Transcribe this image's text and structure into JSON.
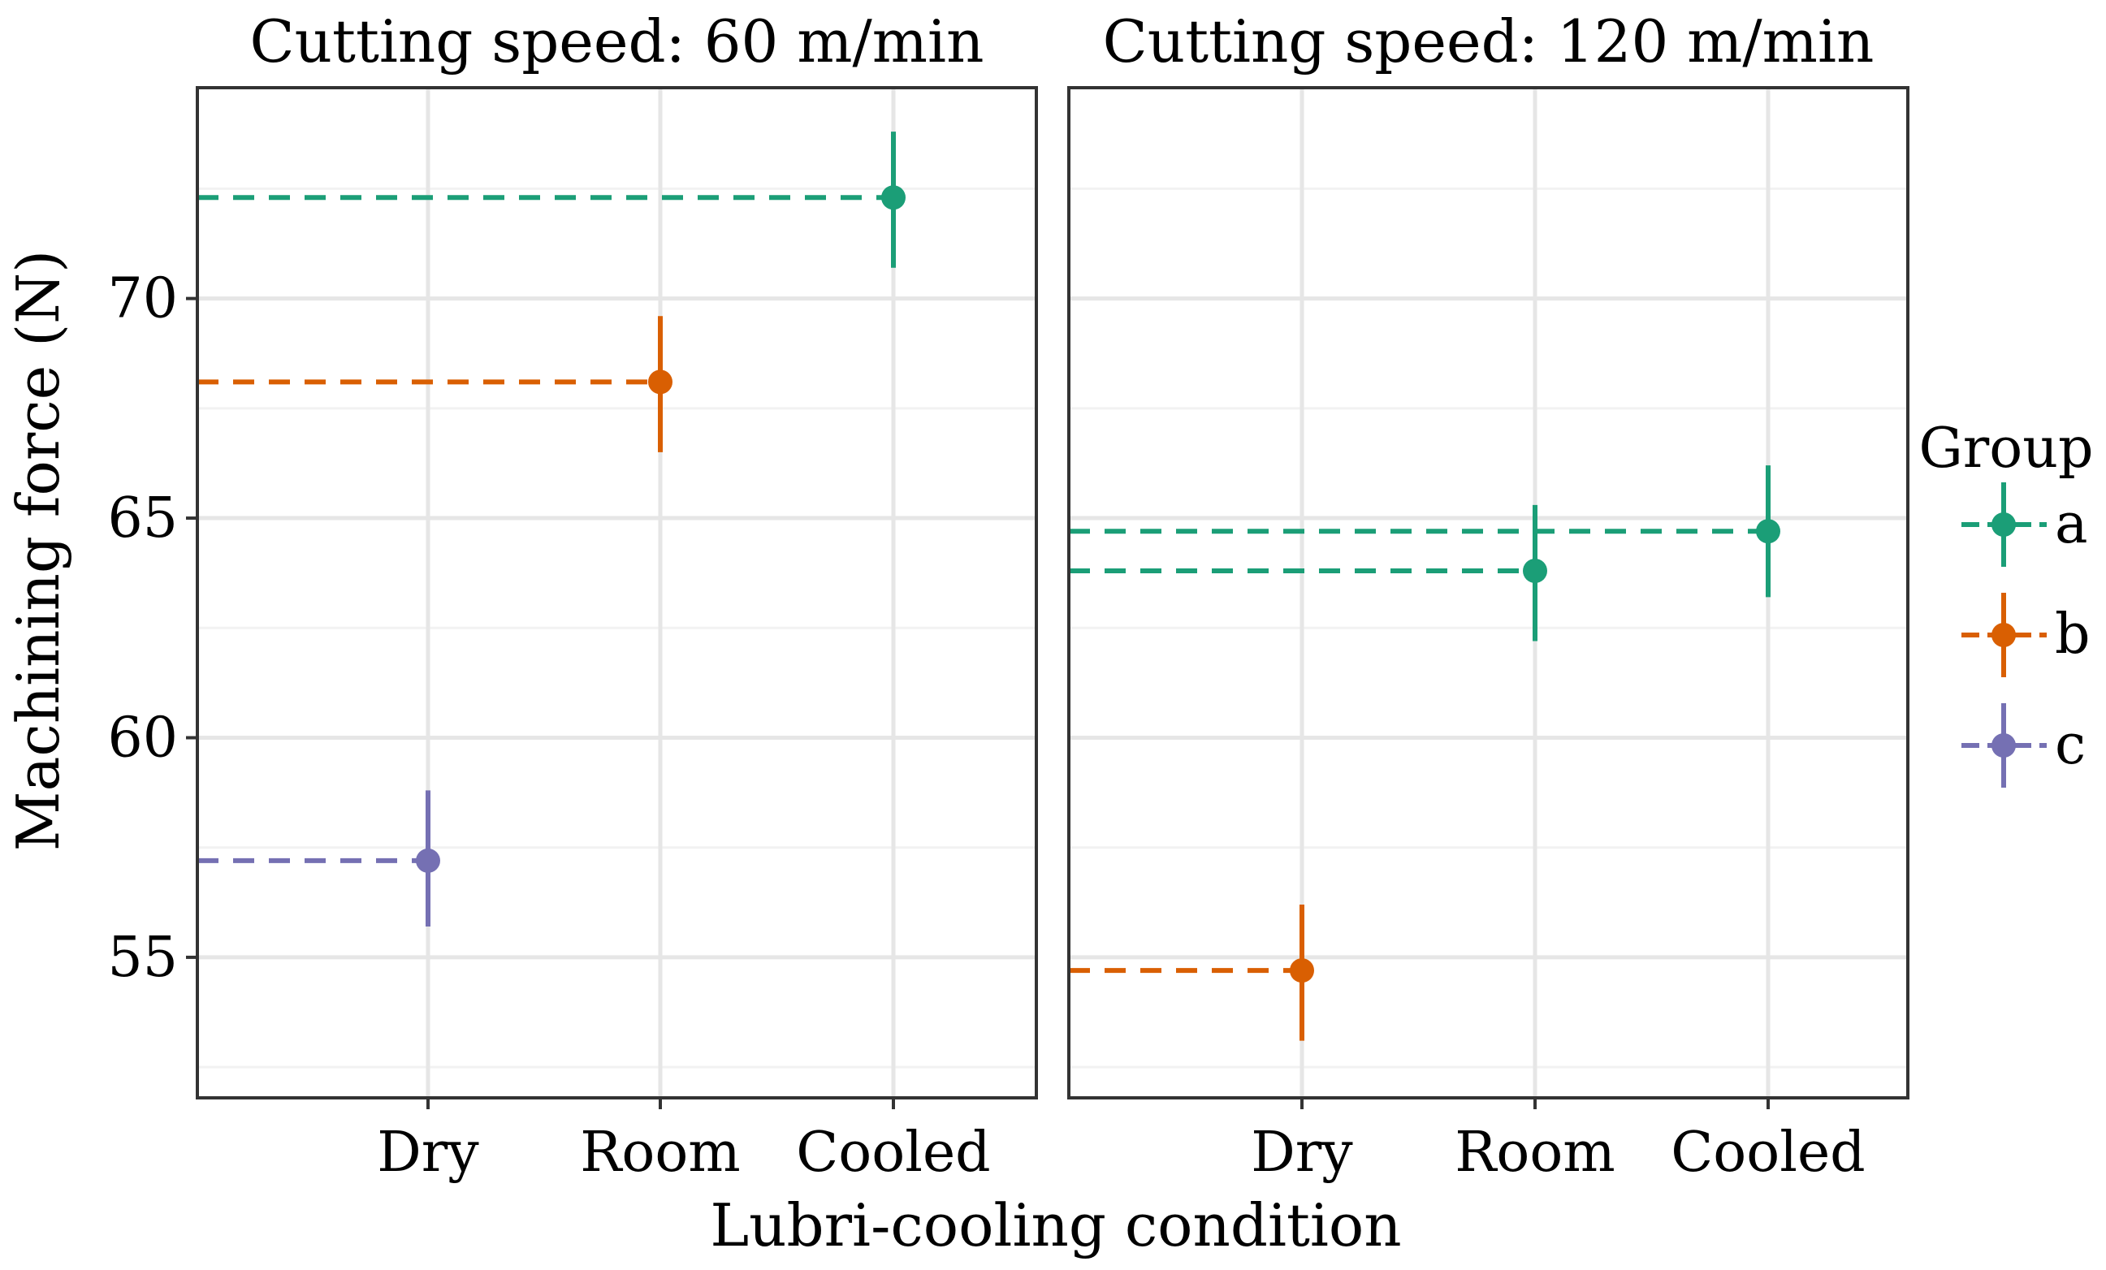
{
  "chart_data": {
    "type": "scatter",
    "ylabel": "Machining force (N)",
    "xlabel": "Lubri-cooling condition",
    "categories": [
      "Dry",
      "Room",
      "Cooled"
    ],
    "ylim": [
      51.8,
      74.8
    ],
    "yticks": [
      55,
      60,
      65,
      70
    ],
    "grid": true,
    "legend": {
      "title": "Group",
      "position": "right",
      "entries": [
        {
          "name": "a",
          "color": "#1b9e77"
        },
        {
          "name": "b",
          "color": "#d95f02"
        },
        {
          "name": "c",
          "color": "#7570b3"
        }
      ]
    },
    "panels": [
      {
        "title": "Cutting speed: 60 m/min",
        "points": [
          {
            "category": "Dry",
            "group": "c",
            "y": 57.2,
            "ymin": 55.7,
            "ymax": 58.8
          },
          {
            "category": "Room",
            "group": "b",
            "y": 68.1,
            "ymin": 66.5,
            "ymax": 69.6
          },
          {
            "category": "Cooled",
            "group": "a",
            "y": 72.3,
            "ymin": 70.7,
            "ymax": 73.8
          }
        ]
      },
      {
        "title": "Cutting speed: 120 m/min",
        "points": [
          {
            "category": "Dry",
            "group": "b",
            "y": 54.7,
            "ymin": 53.1,
            "ymax": 56.2
          },
          {
            "category": "Room",
            "group": "a",
            "y": 63.8,
            "ymin": 62.2,
            "ymax": 65.3
          },
          {
            "category": "Cooled",
            "group": "a",
            "y": 64.7,
            "ymin": 63.2,
            "ymax": 66.2
          }
        ]
      }
    ]
  }
}
